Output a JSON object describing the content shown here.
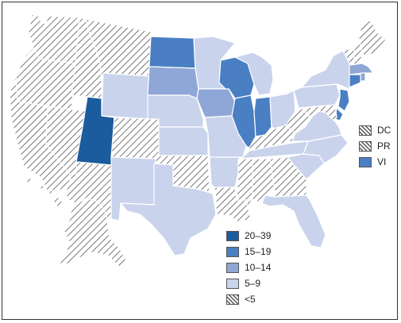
{
  "colors": {
    "c2039": "#1a5c9e",
    "c1519": "#4a7fc4",
    "c1014": "#8ea7d6",
    "c59": "#c9d3ec",
    "lt5": "hatch"
  },
  "legend": {
    "items": [
      {
        "label": "20–39",
        "cls": "c2039"
      },
      {
        "label": "15–19",
        "cls": "c1519"
      },
      {
        "label": "10–14",
        "cls": "c1014"
      },
      {
        "label": "5–9",
        "cls": "c59"
      },
      {
        "label": "<5",
        "cls": "lt5"
      }
    ]
  },
  "territories": [
    {
      "label": "DC",
      "cls": "lt5"
    },
    {
      "label": "PR",
      "cls": "lt5"
    },
    {
      "label": "VI",
      "cls": "c1519"
    }
  ],
  "states": {
    "WA": "lt5",
    "OR": "lt5",
    "CA": "lt5",
    "NV": "lt5",
    "ID": "lt5",
    "MT": "lt5",
    "WY": "c59",
    "UT": "c2039",
    "AZ": "lt5",
    "CO": "lt5",
    "NM": "c59",
    "ND": "c1519",
    "SD": "c1014",
    "NE": "c59",
    "KS": "c59",
    "OK": "lt5",
    "TX": "c59",
    "MN": "c59",
    "IA": "c1014",
    "MO": "c59",
    "AR": "c59",
    "LA": "lt5",
    "WI": "c1519",
    "IL": "c1519",
    "MI": "c59",
    "IN": "c1519",
    "OH": "c59",
    "KY": "lt5",
    "TN": "c59",
    "MS": "lt5",
    "AL": "lt5",
    "GA": "lt5",
    "FL": "c59",
    "SC": "c59",
    "NC": "c59",
    "VA": "c59",
    "WV": "lt5",
    "PA": "c59",
    "NY": "c59",
    "VT": "lt5",
    "NH": "lt5",
    "ME": "lt5",
    "MA": "c1014",
    "RI": "c1014",
    "CT": "c1519",
    "NJ": "c1519",
    "DE": "c1519",
    "MD": "lt5",
    "AK": "lt5",
    "HI": "lt5"
  }
}
